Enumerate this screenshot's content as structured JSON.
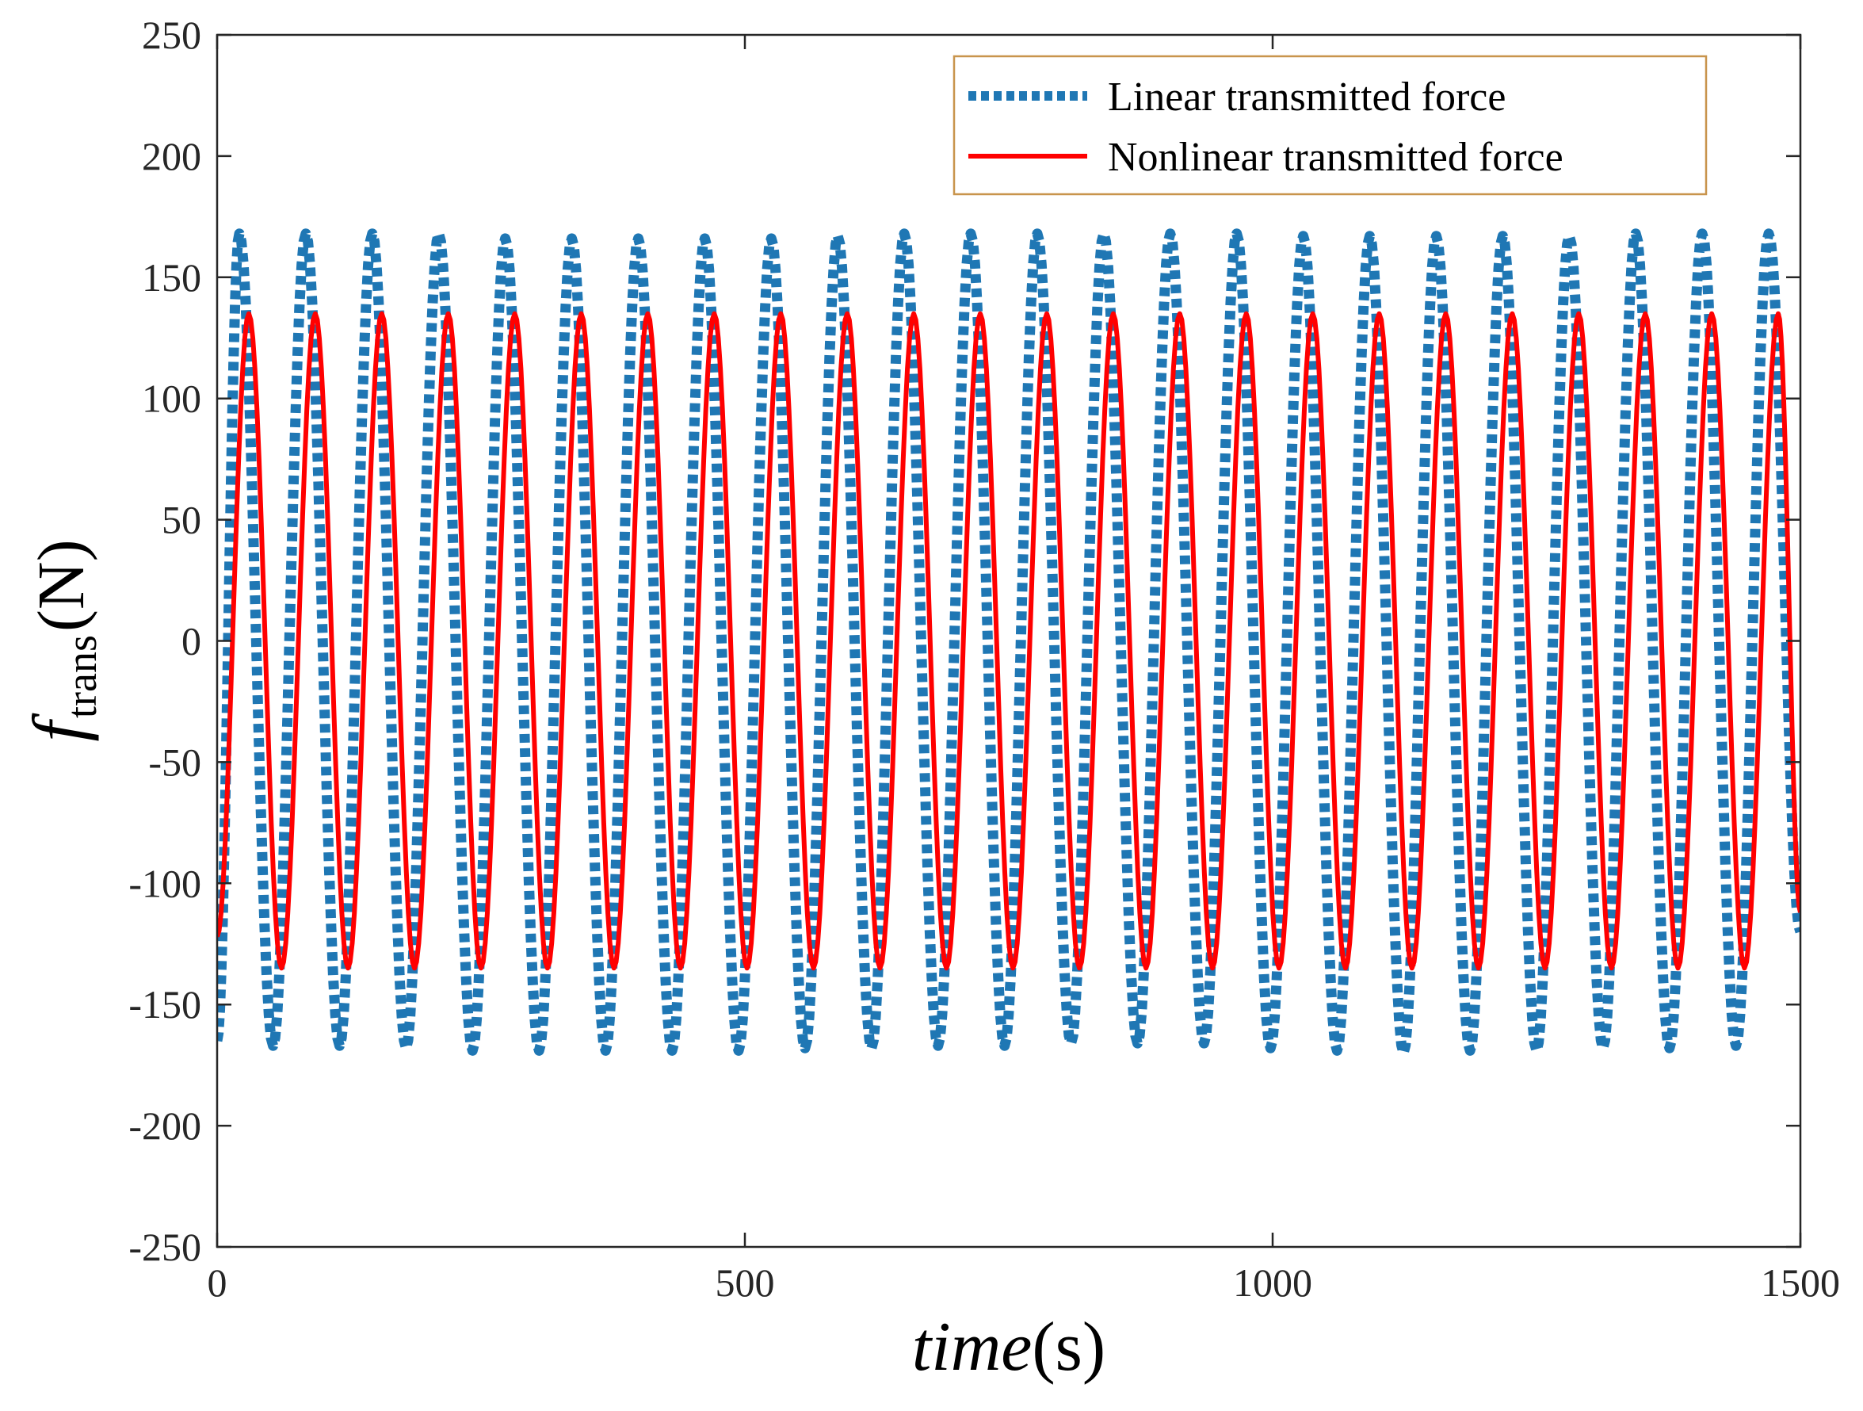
{
  "chart_data": {
    "type": "line",
    "title": "",
    "xlabel": {
      "main": "time",
      "unit": "(s)"
    },
    "ylabel": {
      "symbol": "f",
      "subscript": "trans",
      "unit": "(N)"
    },
    "xlim": [
      0,
      1500
    ],
    "ylim": [
      -250,
      250
    ],
    "x_ticks": [
      0,
      500,
      1000,
      1500
    ],
    "x_tick_labels": [
      "0",
      "500",
      "1000",
      "1500"
    ],
    "y_ticks": [
      250,
      200,
      150,
      100,
      50,
      0,
      -50,
      -100,
      -150,
      -200,
      -250
    ],
    "y_tick_labels": [
      "250",
      "200",
      "150",
      "100",
      "50",
      "0",
      "-50",
      "-100",
      "-150",
      "-200",
      "-250"
    ],
    "grid": false,
    "legend_position": "top-right",
    "series": [
      {
        "name": "Linear transmitted force",
        "color": "#1f77b4",
        "style": "dotted",
        "period_s": 63,
        "amplitude_N": 168,
        "start_value_N": -165,
        "end_value_N": -120,
        "peaks": [
          {
            "t": 21,
            "v": 168
          },
          {
            "t": 84,
            "v": 168
          },
          {
            "t": 147,
            "v": 168
          },
          {
            "t": 210,
            "v": 168
          },
          {
            "t": 273,
            "v": 166
          },
          {
            "t": 336,
            "v": 166
          },
          {
            "t": 399,
            "v": 166
          },
          {
            "t": 462,
            "v": 166
          },
          {
            "t": 525,
            "v": 166
          },
          {
            "t": 588,
            "v": 167
          },
          {
            "t": 651,
            "v": 168
          },
          {
            "t": 714,
            "v": 168
          },
          {
            "t": 777,
            "v": 168
          },
          {
            "t": 840,
            "v": 168
          },
          {
            "t": 903,
            "v": 168
          },
          {
            "t": 966,
            "v": 168
          },
          {
            "t": 1029,
            "v": 167
          },
          {
            "t": 1092,
            "v": 167
          },
          {
            "t": 1155,
            "v": 167
          },
          {
            "t": 1218,
            "v": 167
          },
          {
            "t": 1281,
            "v": 167
          },
          {
            "t": 1344,
            "v": 168
          },
          {
            "t": 1407,
            "v": 168
          },
          {
            "t": 1470,
            "v": 168
          }
        ],
        "troughs": [
          {
            "t": 53,
            "v": -167
          },
          {
            "t": 116,
            "v": -167
          },
          {
            "t": 179,
            "v": -168
          },
          {
            "t": 242,
            "v": -169
          },
          {
            "t": 305,
            "v": -169
          },
          {
            "t": 368,
            "v": -169
          },
          {
            "t": 431,
            "v": -169
          },
          {
            "t": 494,
            "v": -169
          },
          {
            "t": 557,
            "v": -168
          },
          {
            "t": 620,
            "v": -168
          },
          {
            "t": 683,
            "v": -167
          },
          {
            "t": 746,
            "v": -167
          },
          {
            "t": 809,
            "v": -166
          },
          {
            "t": 872,
            "v": -166
          },
          {
            "t": 935,
            "v": -166
          },
          {
            "t": 998,
            "v": -168
          },
          {
            "t": 1061,
            "v": -169
          },
          {
            "t": 1124,
            "v": -170
          },
          {
            "t": 1187,
            "v": -169
          },
          {
            "t": 1250,
            "v": -169
          },
          {
            "t": 1313,
            "v": -168
          },
          {
            "t": 1376,
            "v": -168
          },
          {
            "t": 1439,
            "v": -167
          }
        ]
      },
      {
        "name": "Nonlinear transmitted force",
        "color": "#ff0000",
        "style": "solid",
        "period_s": 63,
        "amplitude_N": 135,
        "start_value_N": -122,
        "end_value_N": -112,
        "peaks": [
          {
            "t": 30,
            "v": 135
          },
          {
            "t": 93,
            "v": 135
          },
          {
            "t": 156,
            "v": 135
          },
          {
            "t": 219,
            "v": 135
          },
          {
            "t": 282,
            "v": 135
          },
          {
            "t": 345,
            "v": 135
          },
          {
            "t": 408,
            "v": 135
          },
          {
            "t": 471,
            "v": 135
          },
          {
            "t": 534,
            "v": 135
          },
          {
            "t": 597,
            "v": 135
          },
          {
            "t": 660,
            "v": 135
          },
          {
            "t": 723,
            "v": 135
          },
          {
            "t": 786,
            "v": 135
          },
          {
            "t": 849,
            "v": 135
          },
          {
            "t": 912,
            "v": 135
          },
          {
            "t": 975,
            "v": 135
          },
          {
            "t": 1038,
            "v": 135
          },
          {
            "t": 1101,
            "v": 135
          },
          {
            "t": 1164,
            "v": 135
          },
          {
            "t": 1227,
            "v": 135
          },
          {
            "t": 1290,
            "v": 135
          },
          {
            "t": 1353,
            "v": 135
          },
          {
            "t": 1416,
            "v": 135
          },
          {
            "t": 1479,
            "v": 135
          }
        ],
        "troughs": [
          {
            "t": 61,
            "v": -135
          },
          {
            "t": 124,
            "v": -135
          },
          {
            "t": 187,
            "v": -135
          },
          {
            "t": 250,
            "v": -135
          },
          {
            "t": 313,
            "v": -135
          },
          {
            "t": 376,
            "v": -135
          },
          {
            "t": 439,
            "v": -135
          },
          {
            "t": 502,
            "v": -135
          },
          {
            "t": 565,
            "v": -135
          },
          {
            "t": 628,
            "v": -135
          },
          {
            "t": 691,
            "v": -135
          },
          {
            "t": 754,
            "v": -135
          },
          {
            "t": 817,
            "v": -135
          },
          {
            "t": 880,
            "v": -135
          },
          {
            "t": 943,
            "v": -135
          },
          {
            "t": 1006,
            "v": -135
          },
          {
            "t": 1069,
            "v": -135
          },
          {
            "t": 1132,
            "v": -135
          },
          {
            "t": 1195,
            "v": -135
          },
          {
            "t": 1258,
            "v": -135
          },
          {
            "t": 1321,
            "v": -135
          },
          {
            "t": 1384,
            "v": -135
          },
          {
            "t": 1447,
            "v": -135
          }
        ]
      }
    ]
  }
}
